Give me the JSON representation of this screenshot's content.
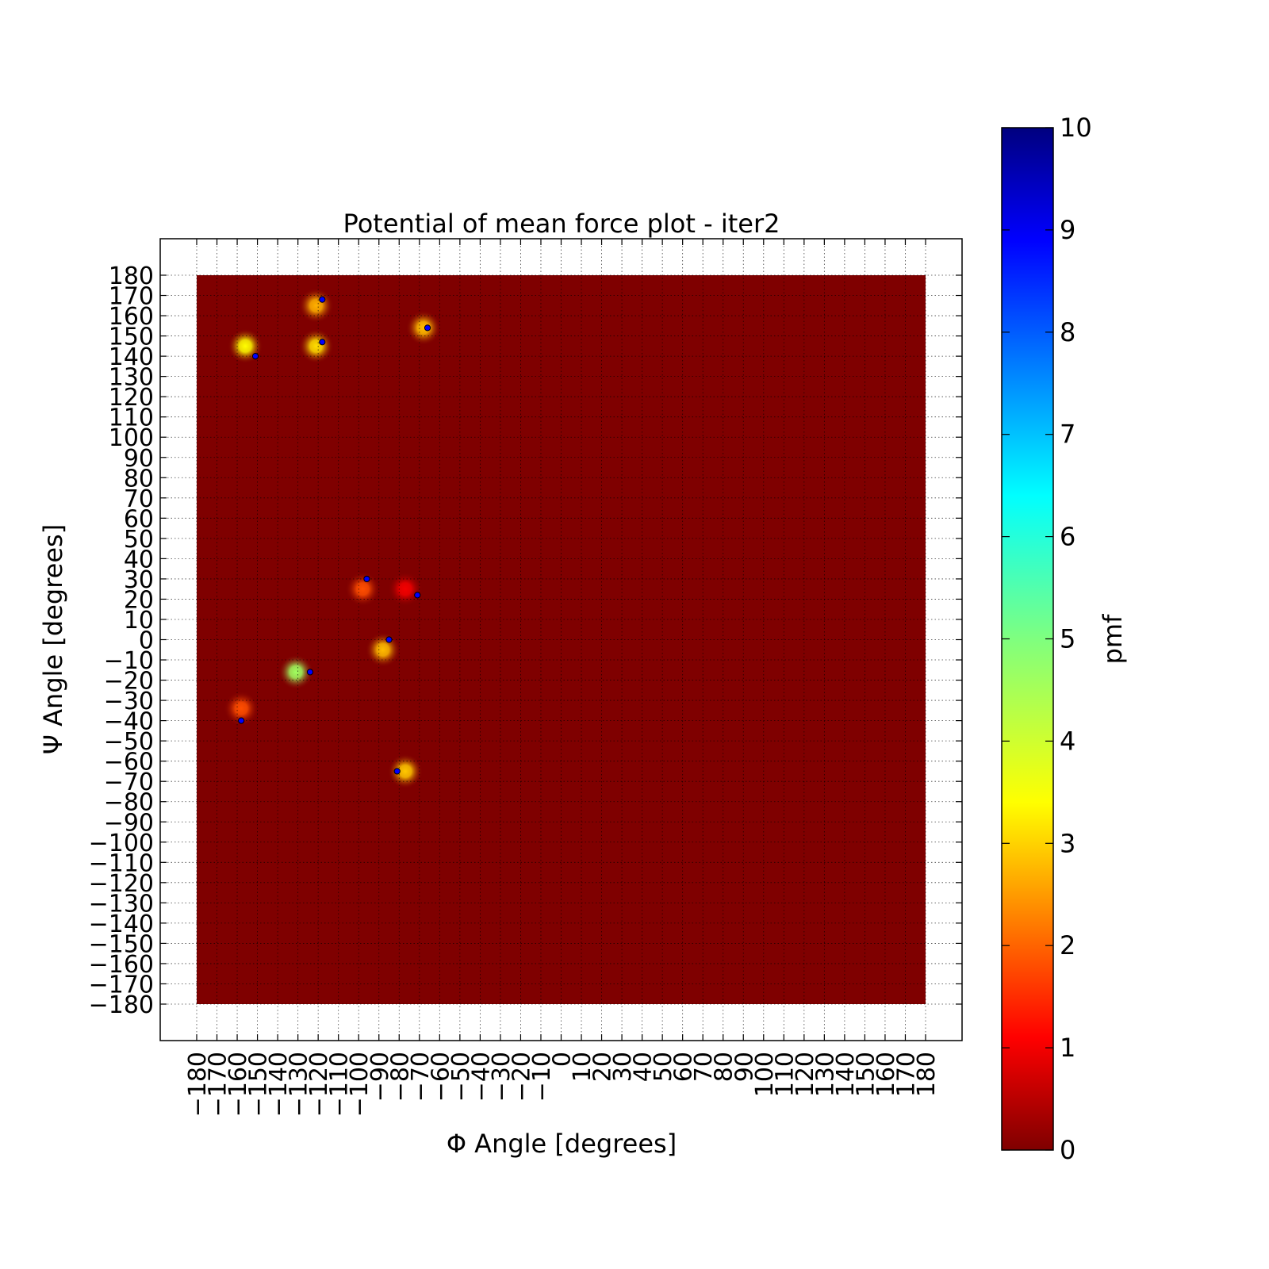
{
  "chart_data": {
    "type": "heatmap",
    "title": "Potential of mean force plot - iter2",
    "xlabel": "Φ Angle [degrees]",
    "ylabel": "Ψ Angle [degrees]",
    "xlim": [
      -180,
      180
    ],
    "ylim": [
      -180,
      180
    ],
    "xticks": [
      -180,
      -170,
      -160,
      -150,
      -140,
      -130,
      -120,
      -110,
      -100,
      -90,
      -80,
      -70,
      -60,
      -50,
      -40,
      -30,
      -20,
      -10,
      0,
      10,
      20,
      30,
      40,
      50,
      60,
      70,
      80,
      90,
      100,
      110,
      120,
      130,
      140,
      150,
      160,
      170,
      180
    ],
    "yticks": [
      -180,
      -170,
      -160,
      -150,
      -140,
      -130,
      -120,
      -110,
      -100,
      -90,
      -80,
      -70,
      -60,
      -50,
      -40,
      -30,
      -20,
      -10,
      0,
      10,
      20,
      30,
      40,
      50,
      60,
      70,
      80,
      90,
      100,
      110,
      120,
      130,
      140,
      150,
      160,
      170,
      180
    ],
    "grid": true,
    "background_value": 0,
    "colormap": "jet",
    "colorbar": {
      "label": "pmf",
      "min": 0,
      "max": 10,
      "ticks": [
        0,
        1,
        2,
        3,
        4,
        5,
        6,
        7,
        8,
        9,
        10
      ]
    },
    "hotspots": [
      {
        "phi": -121,
        "psi": 165,
        "pmf": 2.7
      },
      {
        "phi": -156,
        "psi": 145,
        "pmf": 3.4
      },
      {
        "phi": -121,
        "psi": 145,
        "pmf": 3.1
      },
      {
        "phi": -68,
        "psi": 154,
        "pmf": 2.8
      },
      {
        "phi": -98,
        "psi": 25,
        "pmf": 1.8
      },
      {
        "phi": -77,
        "psi": 25,
        "pmf": 1.0
      },
      {
        "phi": -88,
        "psi": -5,
        "pmf": 2.8
      },
      {
        "phi": -131,
        "psi": -16,
        "pmf": 4.6
      },
      {
        "phi": -158,
        "psi": -34,
        "pmf": 1.8
      },
      {
        "phi": -77,
        "psi": -65,
        "pmf": 2.9
      }
    ],
    "points": [
      {
        "phi": -118,
        "psi": 168
      },
      {
        "phi": -151,
        "psi": 140
      },
      {
        "phi": -118,
        "psi": 147
      },
      {
        "phi": -66,
        "psi": 154
      },
      {
        "phi": -96,
        "psi": 30
      },
      {
        "phi": -71,
        "psi": 22
      },
      {
        "phi": -85,
        "psi": 0
      },
      {
        "phi": -124,
        "psi": -16
      },
      {
        "phi": -158,
        "psi": -40
      },
      {
        "phi": -81,
        "psi": -65
      }
    ],
    "point_color": "#0000ff"
  }
}
